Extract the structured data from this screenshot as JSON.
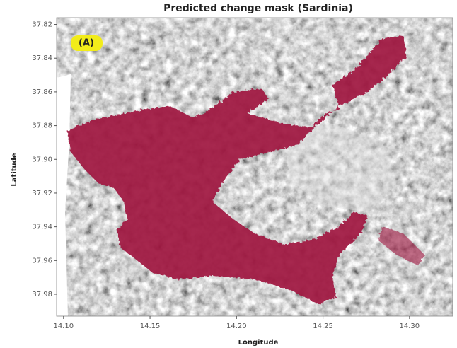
{
  "chart_data": {
    "type": "image",
    "title": "Predicted change mask (Sardinia)",
    "panel_label": "(A)",
    "x_label": "Longitude",
    "y_label": "Latitude",
    "mask_color": "#a01640",
    "xlim": [
      14.096,
      14.325
    ],
    "ylim": [
      37.993,
      37.816
    ],
    "xticks": [
      {
        "value": 14.1,
        "label": "14.10"
      },
      14.15,
      {
        "value": 14.2,
        "label": "14.20"
      },
      14.25,
      {
        "value": 14.3,
        "label": "14.30"
      }
    ],
    "yticks": [
      37.82,
      37.84,
      37.86,
      37.88,
      {
        "value": 37.9,
        "label": "37.90"
      },
      37.92,
      37.94,
      37.96,
      37.98
    ]
  }
}
